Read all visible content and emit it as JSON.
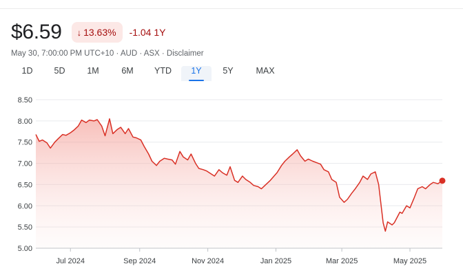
{
  "quote": {
    "price": "$6.59",
    "change_pct": "13.63%",
    "change_arrow": "↓",
    "change_abs": "-1.04 1Y",
    "meta": "May 30, 7:00:00 PM UTC+10 · AUD · ASX · Disclaimer"
  },
  "tabs": [
    {
      "label": "1D"
    },
    {
      "label": "5D"
    },
    {
      "label": "1M"
    },
    {
      "label": "6M"
    },
    {
      "label": "YTD"
    },
    {
      "label": "1Y",
      "active": true
    },
    {
      "label": "5Y"
    },
    {
      "label": "MAX"
    }
  ],
  "colors": {
    "line": "#d93025",
    "fill": "#fce8e6",
    "negative_text": "#a50e0e",
    "active_tab": "#1a73e8"
  },
  "chart_data": {
    "type": "area",
    "xlabel": "",
    "ylabel": "",
    "ylim": [
      5.0,
      8.5
    ],
    "yticks": [
      "8.50",
      "8.00",
      "7.50",
      "7.00",
      "6.50",
      "6.00",
      "5.50",
      "5.00"
    ],
    "xticks": [
      "Jul 2024",
      "Sep 2024",
      "Nov 2024",
      "Jan 2025",
      "Mar 2025",
      "May 2025"
    ],
    "xtick_dates": [
      "2024-07-01",
      "2024-09-01",
      "2024-11-01",
      "2025-01-01",
      "2025-03-01",
      "2025-05-01"
    ],
    "grid": true,
    "series": [
      {
        "x": [
          "2024-05-31",
          "2024-06-03",
          "2024-06-06",
          "2024-06-10",
          "2024-06-13",
          "2024-06-17",
          "2024-06-20",
          "2024-06-24",
          "2024-06-27",
          "2024-07-01",
          "2024-07-04",
          "2024-07-08",
          "2024-07-11",
          "2024-07-15",
          "2024-07-18",
          "2024-07-22",
          "2024-07-25",
          "2024-07-29",
          "2024-08-01",
          "2024-08-05",
          "2024-08-08",
          "2024-08-12",
          "2024-08-15",
          "2024-08-19",
          "2024-08-22",
          "2024-08-26",
          "2024-08-29",
          "2024-09-02",
          "2024-09-05",
          "2024-09-09",
          "2024-09-12",
          "2024-09-16",
          "2024-09-19",
          "2024-09-23",
          "2024-09-26",
          "2024-09-30",
          "2024-10-03",
          "2024-10-07",
          "2024-10-10",
          "2024-10-14",
          "2024-10-17",
          "2024-10-21",
          "2024-10-24",
          "2024-10-28",
          "2024-10-31",
          "2024-11-04",
          "2024-11-07",
          "2024-11-11",
          "2024-11-14",
          "2024-11-18",
          "2024-11-21",
          "2024-11-25",
          "2024-11-28",
          "2024-12-02",
          "2024-12-05",
          "2024-12-09",
          "2024-12-12",
          "2024-12-16",
          "2024-12-19",
          "2024-12-23",
          "2024-12-27",
          "2025-01-02",
          "2025-01-06",
          "2025-01-09",
          "2025-01-13",
          "2025-01-16",
          "2025-01-20",
          "2025-01-23",
          "2025-01-27",
          "2025-01-30",
          "2025-02-03",
          "2025-02-06",
          "2025-02-10",
          "2025-02-13",
          "2025-02-17",
          "2025-02-20",
          "2025-02-24",
          "2025-02-27",
          "2025-03-03",
          "2025-03-06",
          "2025-03-10",
          "2025-03-13",
          "2025-03-17",
          "2025-03-20",
          "2025-03-24",
          "2025-03-27",
          "2025-03-31",
          "2025-04-03",
          "2025-04-07",
          "2025-04-09",
          "2025-04-11",
          "2025-04-15",
          "2025-04-17",
          "2025-04-22",
          "2025-04-24",
          "2025-04-28",
          "2025-05-01",
          "2025-05-05",
          "2025-05-08",
          "2025-05-12",
          "2025-05-15",
          "2025-05-19",
          "2025-05-22",
          "2025-05-26",
          "2025-05-30"
        ],
        "values": [
          7.68,
          7.52,
          7.55,
          7.48,
          7.36,
          7.5,
          7.58,
          7.68,
          7.66,
          7.72,
          7.78,
          7.88,
          8.02,
          7.96,
          8.02,
          8.0,
          8.03,
          7.88,
          7.65,
          8.05,
          7.7,
          7.8,
          7.85,
          7.7,
          7.82,
          7.62,
          7.6,
          7.55,
          7.4,
          7.22,
          7.05,
          6.95,
          7.05,
          7.12,
          7.1,
          7.08,
          6.98,
          7.28,
          7.15,
          7.08,
          7.22,
          7.0,
          6.88,
          6.85,
          6.82,
          6.75,
          6.7,
          6.85,
          6.78,
          6.72,
          6.92,
          6.6,
          6.55,
          6.7,
          6.62,
          6.55,
          6.48,
          6.45,
          6.4,
          6.5,
          6.6,
          6.78,
          6.95,
          7.05,
          7.15,
          7.22,
          7.32,
          7.18,
          7.05,
          7.1,
          7.05,
          7.02,
          6.98,
          6.85,
          6.8,
          6.62,
          6.55,
          6.2,
          6.08,
          6.15,
          6.3,
          6.4,
          6.55,
          6.7,
          6.62,
          6.75,
          6.8,
          6.5,
          5.6,
          5.4,
          5.62,
          5.55,
          5.6,
          5.85,
          5.82,
          6.0,
          5.95,
          6.2,
          6.4,
          6.45,
          6.4,
          6.5,
          6.55,
          6.52,
          6.59
        ]
      }
    ],
    "last_point": {
      "x": "2025-05-30",
      "value": 6.59
    }
  }
}
